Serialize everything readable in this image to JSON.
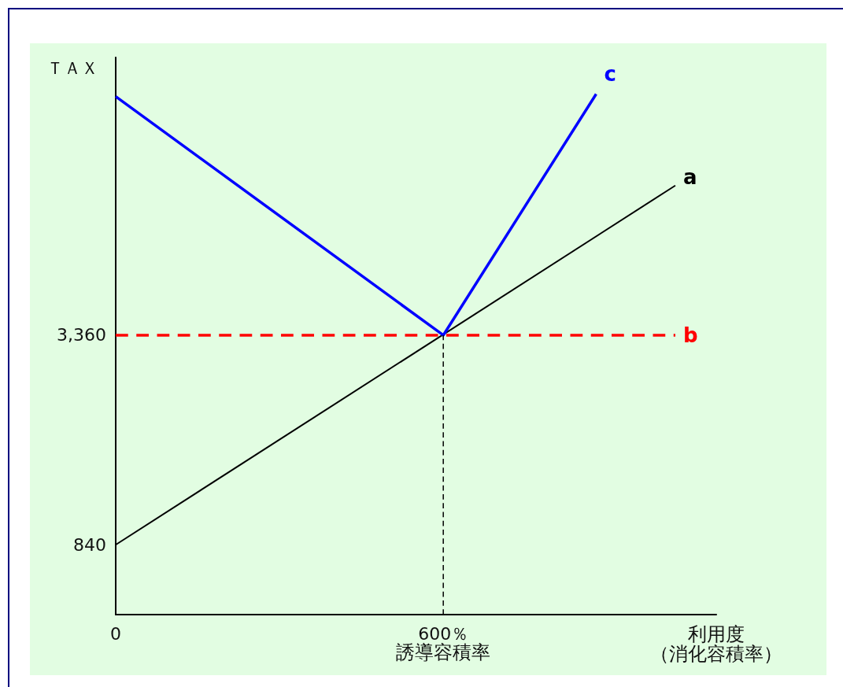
{
  "chart_data": {
    "type": "line",
    "xlabel": "利用度（消化容積率）",
    "ylabel": "ＴＡＸ",
    "xlim": [
      0,
      1100
    ],
    "ylim": [
      0,
      6700
    ],
    "xticks": [
      0,
      {
        "value": 600,
        "label": "600％"
      }
    ],
    "yticks": [
      840,
      {
        "value": 3360,
        "label": "3,360"
      }
    ],
    "annotations": [
      "誘導容積率"
    ],
    "series": [
      {
        "name": "a",
        "color": "#000000",
        "x": [
          0,
          1025
        ],
        "values": [
          840,
          5160
        ]
      },
      {
        "name": "b",
        "color": "#ff0000",
        "x": [
          0,
          1025
        ],
        "values": [
          3360,
          3360
        ],
        "line_style": "dashed"
      },
      {
        "name": "c",
        "color": "#0000ff",
        "x": [
          0,
          600,
          880
        ],
        "values": [
          6230,
          3360,
          6260
        ]
      },
      {
        "color": "#000000",
        "x": [
          600,
          600
        ],
        "values": [
          0,
          3360
        ],
        "line_style": "dashed"
      }
    ]
  }
}
